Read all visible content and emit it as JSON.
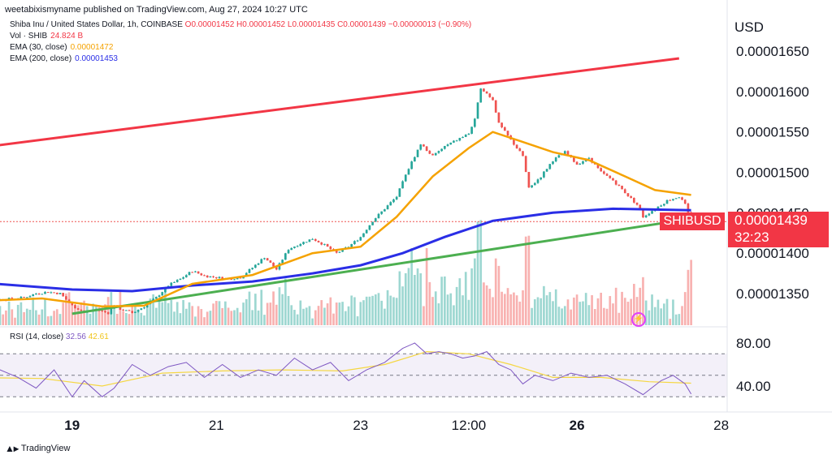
{
  "header": {
    "publisher": "weetabixismyname published on TradingView.com, Aug 27, 2024 10:27 UTC"
  },
  "legend": {
    "symbol": "Shiba Inu / United States Dollar, 1h, COINBASE",
    "ohlc": "O0.00001452 H0.00001452 L0.00001435 C0.00001439 −0.00000013 (−0.90%)",
    "vol_label": "Vol · SHIB",
    "vol_value": "24.824 B",
    "ema30_label": "EMA (30, close)",
    "ema30_value": "0.00001472",
    "ema200_label": "EMA (200, close)",
    "ema200_value": "0.00001453",
    "rsi_label": "RSI (14, close)",
    "rsi_value": "32.56",
    "rsi_ma_value": "42.61"
  },
  "axis": {
    "currency": "USD",
    "price_ticks": [
      "0.00001650",
      "0.00001600",
      "0.00001550",
      "0.00001500",
      "0.00001450",
      "0.00001400",
      "0.00001350"
    ],
    "rsi_ticks": [
      "80.00",
      "40.00"
    ],
    "time_ticks": [
      "19",
      "21",
      "23",
      "12:00",
      "26",
      "28"
    ]
  },
  "tags": {
    "symbol": "SHIBUSD",
    "price": "0.00001439",
    "countdown": "32:23"
  },
  "footer": {
    "brand": "TradingView"
  },
  "colors": {
    "up": "#26a69a",
    "down": "#ef5350",
    "ema30": "#f5a200",
    "ema200": "#2a2ee6",
    "resistance": "#f23645",
    "support": "#4caf50",
    "rsi": "#7e57c2",
    "rsi_ma": "#f5d742"
  },
  "chart_data": {
    "type": "candlestick",
    "title": "",
    "timeframe": "1h",
    "ylim": [
      1.315e-05,
      1.67e-05
    ],
    "x_range_hours": [
      -24,
      218
    ],
    "x_ticks_hours": [
      {
        "label": "19",
        "h": 0
      },
      {
        "label": "21",
        "h": 48
      },
      {
        "label": "23",
        "h": 96
      },
      {
        "label": "12:00",
        "h": 132
      },
      {
        "label": "26",
        "h": 168
      },
      {
        "label": "28",
        "h": 216
      }
    ],
    "resistance_line": [
      [
        -36,
        1.528e-05
      ],
      [
        202,
        1.641e-05
      ]
    ],
    "support_line": [
      [
        0,
        1.325e-05
      ],
      [
        205,
        1.442e-05
      ]
    ],
    "close_path": [
      [
        -36,
        1.338e-05
      ],
      [
        -28,
        1.342e-05
      ],
      [
        -22,
        1.343e-05
      ],
      [
        -16,
        1.345e-05
      ],
      [
        -12,
        1.35e-05
      ],
      [
        -8,
        1.352e-05
      ],
      [
        -4,
        1.35e-05
      ],
      [
        0,
        1.335e-05
      ],
      [
        4,
        1.327e-05
      ],
      [
        8,
        1.33e-05
      ],
      [
        12,
        1.326e-05
      ],
      [
        14,
        1.336e-05
      ],
      [
        16,
        1.331e-05
      ],
      [
        20,
        1.326e-05
      ],
      [
        24,
        1.334e-05
      ],
      [
        28,
        1.345e-05
      ],
      [
        32,
        1.36e-05
      ],
      [
        36,
        1.368e-05
      ],
      [
        40,
        1.378e-05
      ],
      [
        44,
        1.372e-05
      ],
      [
        48,
        1.37e-05
      ],
      [
        52,
        1.368e-05
      ],
      [
        56,
        1.37e-05
      ],
      [
        60,
        1.382e-05
      ],
      [
        64,
        1.395e-05
      ],
      [
        68,
        1.38e-05
      ],
      [
        72,
        1.405e-05
      ],
      [
        76,
        1.412e-05
      ],
      [
        80,
        1.418e-05
      ],
      [
        84,
        1.41e-05
      ],
      [
        88,
        1.4e-05
      ],
      [
        92,
        1.408e-05
      ],
      [
        96,
        1.42e-05
      ],
      [
        100,
        1.44e-05
      ],
      [
        104,
        1.455e-05
      ],
      [
        108,
        1.47e-05
      ],
      [
        112,
        1.505e-05
      ],
      [
        116,
        1.535e-05
      ],
      [
        120,
        1.52e-05
      ],
      [
        124,
        1.532e-05
      ],
      [
        128,
        1.54e-05
      ],
      [
        132,
        1.548e-05
      ],
      [
        134,
        1.565e-05
      ],
      [
        136,
        1.605e-05
      ],
      [
        140,
        1.59e-05
      ],
      [
        142,
        1.56e-05
      ],
      [
        146,
        1.54e-05
      ],
      [
        150,
        1.52e-05
      ],
      [
        152,
        1.48e-05
      ],
      [
        156,
        1.495e-05
      ],
      [
        160,
        1.515e-05
      ],
      [
        164,
        1.525e-05
      ],
      [
        168,
        1.51e-05
      ],
      [
        172,
        1.518e-05
      ],
      [
        176,
        1.5e-05
      ],
      [
        180,
        1.49e-05
      ],
      [
        184,
        1.475e-05
      ],
      [
        188,
        1.46e-05
      ],
      [
        190,
        1.445e-05
      ],
      [
        194,
        1.455e-05
      ],
      [
        198,
        1.465e-05
      ],
      [
        202,
        1.47e-05
      ],
      [
        204,
        1.46e-05
      ],
      [
        206,
        1.439e-05
      ]
    ],
    "ema30": [
      [
        -36,
        1.34e-05
      ],
      [
        -10,
        1.344e-05
      ],
      [
        10,
        1.334e-05
      ],
      [
        24,
        1.335e-05
      ],
      [
        40,
        1.362e-05
      ],
      [
        60,
        1.373e-05
      ],
      [
        80,
        1.4e-05
      ],
      [
        96,
        1.408e-05
      ],
      [
        108,
        1.445e-05
      ],
      [
        120,
        1.495e-05
      ],
      [
        132,
        1.53e-05
      ],
      [
        140,
        1.55e-05
      ],
      [
        148,
        1.54e-05
      ],
      [
        160,
        1.525e-05
      ],
      [
        172,
        1.515e-05
      ],
      [
        184,
        1.495e-05
      ],
      [
        194,
        1.478e-05
      ],
      [
        206,
        1.472e-05
      ]
    ],
    "ema200": [
      [
        -36,
        1.365e-05
      ],
      [
        0,
        1.355e-05
      ],
      [
        20,
        1.353e-05
      ],
      [
        40,
        1.36e-05
      ],
      [
        60,
        1.365e-05
      ],
      [
        80,
        1.375e-05
      ],
      [
        96,
        1.385e-05
      ],
      [
        110,
        1.4e-05
      ],
      [
        124,
        1.42e-05
      ],
      [
        140,
        1.44e-05
      ],
      [
        160,
        1.45e-05
      ],
      [
        180,
        1.455e-05
      ],
      [
        206,
        1.453e-05
      ]
    ],
    "rsi_ylim": [
      25,
      90
    ],
    "rsi_levels": [
      70,
      50,
      30
    ],
    "rsi_path": [
      [
        -36,
        50
      ],
      [
        -30,
        42
      ],
      [
        -24,
        55
      ],
      [
        -18,
        48
      ],
      [
        -12,
        38
      ],
      [
        -6,
        55
      ],
      [
        0,
        30
      ],
      [
        4,
        45
      ],
      [
        10,
        30
      ],
      [
        14,
        38
      ],
      [
        20,
        60
      ],
      [
        26,
        50
      ],
      [
        32,
        58
      ],
      [
        38,
        62
      ],
      [
        44,
        48
      ],
      [
        50,
        60
      ],
      [
        56,
        48
      ],
      [
        62,
        55
      ],
      [
        68,
        50
      ],
      [
        74,
        66
      ],
      [
        80,
        55
      ],
      [
        86,
        62
      ],
      [
        92,
        45
      ],
      [
        98,
        55
      ],
      [
        104,
        62
      ],
      [
        110,
        75
      ],
      [
        114,
        80
      ],
      [
        118,
        70
      ],
      [
        122,
        72
      ],
      [
        126,
        70
      ],
      [
        130,
        66
      ],
      [
        134,
        68
      ],
      [
        138,
        72
      ],
      [
        142,
        60
      ],
      [
        146,
        55
      ],
      [
        150,
        42
      ],
      [
        154,
        50
      ],
      [
        160,
        45
      ],
      [
        166,
        52
      ],
      [
        172,
        48
      ],
      [
        178,
        50
      ],
      [
        184,
        42
      ],
      [
        190,
        32
      ],
      [
        196,
        45
      ],
      [
        200,
        50
      ],
      [
        204,
        42
      ],
      [
        206,
        32.56
      ]
    ],
    "rsi_ma_path": [
      [
        -36,
        48
      ],
      [
        -10,
        47
      ],
      [
        10,
        40
      ],
      [
        30,
        52
      ],
      [
        50,
        54
      ],
      [
        70,
        55
      ],
      [
        90,
        54
      ],
      [
        104,
        60
      ],
      [
        118,
        72
      ],
      [
        132,
        70
      ],
      [
        146,
        60
      ],
      [
        160,
        48
      ],
      [
        176,
        48
      ],
      [
        192,
        44
      ],
      [
        206,
        42.61
      ]
    ]
  }
}
